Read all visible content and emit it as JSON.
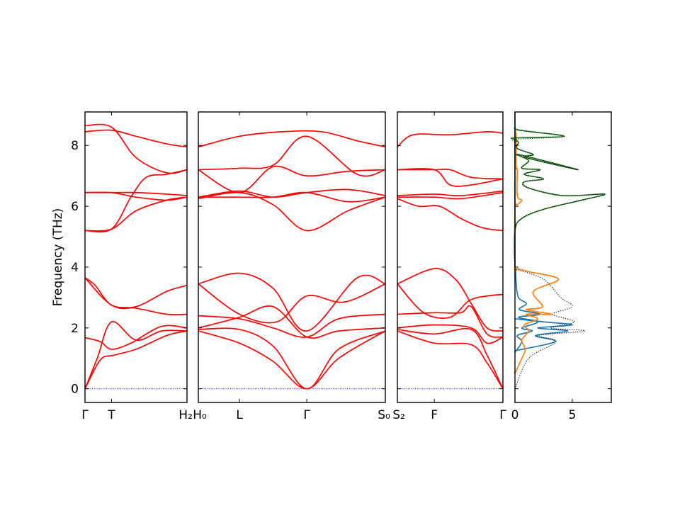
{
  "chart_data": [
    {
      "type": "line",
      "panel": "band-path-1",
      "ylabel": "Frequency (THz)",
      "ylim": [
        -0.45,
        9.1
      ],
      "yticks": [
        0,
        2,
        4,
        6,
        8
      ],
      "x_ticks": [
        "Γ",
        "T",
        "H₂"
      ],
      "x_tick_positions": [
        0,
        0.26,
        1
      ],
      "line_color": "#ff0000",
      "series": [
        {
          "x": [
            0,
            0.12,
            0.26,
            0.5,
            0.75,
            1
          ],
          "y": [
            0,
            1.0,
            2.2,
            1.6,
            1.9,
            1.9
          ]
        },
        {
          "x": [
            0,
            0.15,
            0.28,
            0.5,
            0.8,
            1
          ],
          "y": [
            0,
            0.95,
            1.1,
            1.3,
            1.75,
            1.9
          ]
        },
        {
          "x": [
            0,
            0.15,
            0.26,
            0.45,
            0.75,
            1
          ],
          "y": [
            1.68,
            1.55,
            1.3,
            1.5,
            2.05,
            2.0
          ]
        },
        {
          "x": [
            0,
            0.1,
            0.26,
            0.5,
            0.8,
            1
          ],
          "y": [
            3.65,
            3.4,
            2.75,
            2.65,
            2.45,
            2.45
          ]
        },
        {
          "x": [
            0,
            0.26,
            0.5,
            0.8,
            1
          ],
          "y": [
            3.65,
            2.75,
            2.7,
            3.2,
            3.4
          ]
        },
        {
          "x": [
            0,
            0.26,
            0.45,
            0.6,
            0.8,
            1
          ],
          "y": [
            5.2,
            5.25,
            6.3,
            6.95,
            7.05,
            7.2
          ]
        },
        {
          "x": [
            0,
            0.26,
            0.5,
            0.8,
            1
          ],
          "y": [
            5.2,
            5.25,
            5.85,
            6.2,
            6.3
          ]
        },
        {
          "x": [
            0,
            0.26,
            0.5,
            0.8,
            1
          ],
          "y": [
            6.45,
            6.45,
            6.3,
            6.2,
            6.3
          ]
        },
        {
          "x": [
            0,
            0.26,
            0.5,
            0.8,
            1
          ],
          "y": [
            6.45,
            6.45,
            6.45,
            6.4,
            6.35
          ]
        },
        {
          "x": [
            0,
            0.26,
            0.5,
            0.8,
            1
          ],
          "y": [
            8.45,
            8.5,
            8.3,
            8.05,
            7.95
          ]
        },
        {
          "x": [
            0,
            0.26,
            0.5,
            0.8,
            1
          ],
          "y": [
            8.65,
            8.6,
            7.6,
            7.1,
            7.2
          ]
        }
      ]
    },
    {
      "type": "line",
      "panel": "band-path-2",
      "ylim": [
        -0.45,
        9.1
      ],
      "x_ticks": [
        "H₀",
        "L",
        "Γ",
        "S₀"
      ],
      "x_tick_positions": [
        0,
        0.22,
        0.58,
        1
      ],
      "line_color": "#ff0000",
      "series": [
        {
          "x": [
            0,
            0.22,
            0.4,
            0.58,
            0.75,
            1
          ],
          "y": [
            1.9,
            1.5,
            0.9,
            0,
            1.0,
            1.9
          ]
        },
        {
          "x": [
            0,
            0.22,
            0.4,
            0.58,
            0.75,
            1
          ],
          "y": [
            1.95,
            1.95,
            1.4,
            0,
            1.3,
            1.9
          ]
        },
        {
          "x": [
            0,
            0.22,
            0.4,
            0.58,
            0.75,
            1
          ],
          "y": [
            2.0,
            2.35,
            2.7,
            1.7,
            1.9,
            2.0
          ]
        },
        {
          "x": [
            0,
            0.22,
            0.4,
            0.58,
            0.75,
            1
          ],
          "y": [
            2.4,
            2.3,
            2.0,
            1.7,
            2.3,
            2.45
          ]
        },
        {
          "x": [
            0,
            0.22,
            0.42,
            0.58,
            0.78,
            1
          ],
          "y": [
            3.45,
            2.45,
            2.2,
            3.05,
            2.85,
            3.45
          ]
        },
        {
          "x": [
            0,
            0.22,
            0.4,
            0.58,
            0.85,
            1
          ],
          "y": [
            3.45,
            3.8,
            3.3,
            1.9,
            3.65,
            3.45
          ]
        },
        {
          "x": [
            0,
            0.22,
            0.4,
            0.58,
            0.8,
            1
          ],
          "y": [
            6.25,
            6.45,
            6.05,
            5.2,
            5.85,
            6.3
          ]
        },
        {
          "x": [
            0,
            0.22,
            0.4,
            0.58,
            0.8,
            1
          ],
          "y": [
            6.3,
            6.3,
            6.3,
            6.45,
            6.15,
            6.3
          ]
        },
        {
          "x": [
            0,
            0.22,
            0.4,
            0.58,
            0.8,
            1
          ],
          "y": [
            6.3,
            6.5,
            6.3,
            6.45,
            6.55,
            6.35
          ]
        },
        {
          "x": [
            0,
            0.22,
            0.4,
            0.58,
            0.8,
            1
          ],
          "y": [
            7.2,
            6.45,
            7.3,
            7.0,
            7.15,
            7.2
          ]
        },
        {
          "x": [
            0,
            0.22,
            0.4,
            0.58,
            0.85,
            1
          ],
          "y": [
            7.2,
            7.25,
            7.35,
            8.3,
            7.05,
            7.2
          ]
        },
        {
          "x": [
            0,
            0.22,
            0.45,
            0.66,
            0.85,
            1
          ],
          "y": [
            7.95,
            8.3,
            8.45,
            8.45,
            8.15,
            7.95
          ]
        }
      ]
    },
    {
      "type": "line",
      "panel": "band-path-3",
      "ylim": [
        -0.45,
        9.1
      ],
      "x_ticks": [
        "S₂",
        "F",
        "Γ"
      ],
      "x_tick_positions": [
        0,
        0.35,
        1
      ],
      "line_color": "#ff0000",
      "series": [
        {
          "x": [
            0,
            0.35,
            0.7,
            0.85,
            1
          ],
          "y": [
            1.9,
            1.5,
            1.45,
            0.85,
            0
          ]
        },
        {
          "x": [
            0,
            0.35,
            0.7,
            0.85,
            1
          ],
          "y": [
            1.95,
            1.8,
            1.95,
            1.1,
            0
          ]
        },
        {
          "x": [
            0,
            0.35,
            0.7,
            0.85,
            1
          ],
          "y": [
            2.0,
            2.1,
            2.0,
            1.5,
            1.7
          ]
        },
        {
          "x": [
            0,
            0.35,
            0.6,
            0.7,
            0.85,
            1
          ],
          "y": [
            2.45,
            2.5,
            2.5,
            2.7,
            1.8,
            1.7
          ]
        },
        {
          "x": [
            0,
            0.25,
            0.5,
            0.68,
            0.85,
            1
          ],
          "y": [
            3.45,
            2.5,
            2.35,
            2.9,
            3.05,
            3.1
          ]
        },
        {
          "x": [
            0,
            0.35,
            0.55,
            0.7,
            0.85,
            1
          ],
          "y": [
            3.45,
            3.95,
            3.6,
            2.8,
            2.0,
            1.9
          ]
        },
        {
          "x": [
            0,
            0.2,
            0.4,
            0.6,
            0.8,
            1
          ],
          "y": [
            6.25,
            6.0,
            6.0,
            5.6,
            5.3,
            5.2
          ]
        },
        {
          "x": [
            0,
            0.35,
            0.6,
            1
          ],
          "y": [
            6.3,
            6.3,
            6.25,
            6.45
          ]
        },
        {
          "x": [
            0,
            0.35,
            0.6,
            1
          ],
          "y": [
            6.35,
            6.4,
            6.35,
            6.5
          ]
        },
        {
          "x": [
            0,
            0.35,
            0.5,
            0.7,
            1
          ],
          "y": [
            7.2,
            7.2,
            6.7,
            6.7,
            6.9
          ]
        },
        {
          "x": [
            0,
            0.35,
            0.5,
            0.7,
            1
          ],
          "y": [
            7.2,
            7.2,
            7.2,
            6.95,
            6.9
          ]
        },
        {
          "x": [
            0,
            0.15,
            0.5,
            0.85,
            1
          ],
          "y": [
            7.95,
            8.35,
            8.35,
            8.45,
            8.4
          ]
        }
      ]
    },
    {
      "type": "line",
      "panel": "density-of-states",
      "xlim": [
        0,
        8.4
      ],
      "ylim": [
        -0.45,
        9.1
      ],
      "x_ticks": [
        "0",
        "5"
      ],
      "x_tick_values": [
        0,
        5
      ],
      "series": [
        {
          "color": "#1f77b4",
          "style": "solid",
          "x": [
            0,
            0.6,
            0.2,
            1.5,
            0.6,
            2.0,
            0.3,
            2.2,
            0.4,
            1.0,
            0.3,
            0.1,
            0.05,
            0,
            0
          ],
          "y": [
            1.2,
            1.55,
            1.75,
            1.9,
            2.0,
            2.2,
            2.35,
            2.45,
            2.6,
            2.8,
            3.0,
            3.5,
            3.9,
            4.0,
            9.1
          ]
        },
        {
          "color": "#1f77b4",
          "style": "solid",
          "x": [
            0,
            3.5,
            1.8,
            4.6,
            2.0,
            5.0,
            2.5,
            0
          ],
          "y": [
            1.25,
            1.55,
            1.75,
            1.9,
            2.0,
            2.1,
            2.2,
            2.3
          ]
        },
        {
          "color": "#ff7f0e",
          "style": "solid",
          "x": [
            0,
            0.6,
            0.9,
            0.6,
            1.2,
            0.8,
            2.0,
            1.0,
            3.2,
            1.0,
            2.4,
            1.6,
            3.8,
            1.2,
            0.2,
            0,
            0,
            0.2,
            0.6,
            0.2,
            0.2,
            0.1,
            0.1,
            0
          ],
          "y": [
            0.5,
            1.0,
            1.3,
            1.6,
            1.9,
            2.1,
            2.3,
            2.45,
            2.45,
            2.6,
            2.7,
            3.2,
            3.6,
            3.85,
            3.95,
            4.0,
            5.9,
            6.05,
            6.2,
            6.35,
            7.2,
            7.3,
            8.3,
            8.5
          ]
        },
        {
          "color": "#2a7f2a",
          "style": "solid",
          "x": [
            0,
            0,
            0.6,
            2.5,
            5.8,
            7.8,
            4.2,
            1.2,
            0.8,
            2.5,
            0.8,
            2.2,
            0.6,
            1.2,
            0.3,
            5.5,
            1.0,
            1.6,
            0.2,
            0.3,
            0,
            0,
            4.3,
            0.4,
            0
          ],
          "y": [
            4.0,
            5.2,
            5.6,
            5.9,
            6.2,
            6.4,
            6.35,
            6.6,
            6.8,
            6.9,
            7.05,
            7.2,
            7.25,
            7.5,
            7.7,
            7.2,
            7.6,
            7.7,
            7.9,
            8.1,
            8.2,
            8.25,
            8.3,
            8.5,
            8.6
          ]
        },
        {
          "color": "#000000",
          "style": "dotted",
          "x": [
            0,
            1.2,
            3.6,
            2.0,
            6.1,
            3.1,
            5.2,
            3.3,
            5.0,
            4.0,
            2.5,
            0.4,
            0,
            0,
            0.6,
            2.5,
            5.8,
            7.8,
            4.2,
            1.2,
            0.8,
            2.5,
            0.8,
            2.2,
            0.6,
            1.2,
            0.3,
            5.5,
            1.0,
            1.6,
            0.2,
            0.3,
            0,
            4.3,
            0.4,
            0
          ],
          "y": [
            0,
            1.0,
            1.55,
            1.75,
            1.9,
            2.0,
            2.2,
            2.45,
            2.7,
            3.0,
            3.6,
            3.9,
            4.0,
            5.2,
            5.6,
            5.9,
            6.2,
            6.4,
            6.35,
            6.6,
            6.8,
            6.9,
            7.05,
            7.2,
            7.25,
            7.5,
            7.7,
            7.2,
            7.6,
            7.7,
            7.9,
            8.1,
            8.2,
            8.3,
            8.5,
            8.6
          ]
        }
      ]
    }
  ]
}
